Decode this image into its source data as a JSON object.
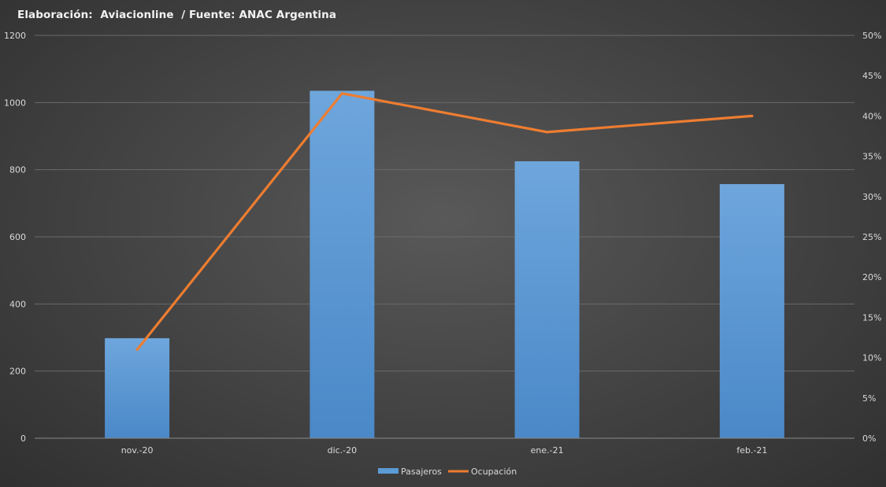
{
  "chart_data": {
    "type": "bar",
    "title": "Elaboración:  Aviacionline  / Fuente: ANAC Argentina",
    "categories": [
      "nov.-20",
      "dic.-20",
      "ene.-21",
      "feb.-21"
    ],
    "series": [
      {
        "name": "Pasajeros",
        "type": "bar",
        "axis": "left",
        "values": [
          298,
          1035,
          825,
          757
        ],
        "color": "#5b9bd5"
      },
      {
        "name": "Ocupación",
        "type": "line",
        "axis": "right",
        "values": [
          0.11,
          0.428,
          0.38,
          0.4
        ],
        "color": "#ed7d31"
      }
    ],
    "y_left": {
      "min": 0,
      "max": 1200,
      "ticks": [
        0,
        200,
        400,
        600,
        800,
        1000,
        1200
      ],
      "tick_labels": [
        "0",
        "200",
        "400",
        "600",
        "800",
        "1000",
        "1200"
      ]
    },
    "y_right": {
      "min": 0,
      "max": 0.5,
      "ticks": [
        0,
        0.05,
        0.1,
        0.15,
        0.2,
        0.25,
        0.3,
        0.35,
        0.4,
        0.45,
        0.5
      ],
      "tick_labels": [
        "0%",
        "5%",
        "10%",
        "15%",
        "20%",
        "25%",
        "30%",
        "35%",
        "40%",
        "45%",
        "50%"
      ]
    },
    "xlabel": "",
    "ylabel": "",
    "grid": true,
    "legend": {
      "position": "bottom",
      "entries": [
        "Pasajeros",
        "Ocupación"
      ]
    },
    "colors": {
      "background": "#4a4a4a",
      "grid": "#6a6a6a",
      "text": "#d9d9d9"
    }
  }
}
